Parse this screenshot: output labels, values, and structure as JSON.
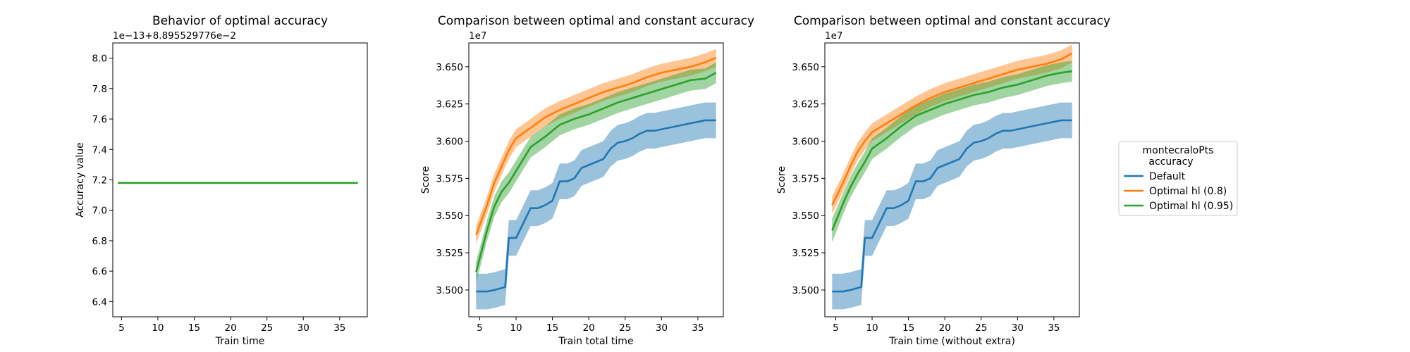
{
  "chart_data": [
    {
      "type": "line",
      "title": "Behavior of optimal accuracy",
      "xlabel": "Train time",
      "ylabel": "Accuracy value",
      "offset_text": "1e−13+8.895529776e−2",
      "xlim": [
        3.8,
        38.8
      ],
      "ylim": [
        6.3,
        8.1
      ],
      "xticks": [
        5,
        10,
        15,
        20,
        25,
        30,
        35
      ],
      "yticks": [
        6.4,
        6.6,
        6.8,
        7.0,
        7.2,
        7.4,
        7.6,
        7.8,
        8.0
      ],
      "ytick_labels": [
        "6.4",
        "6.6",
        "6.8",
        "7.0",
        "7.2",
        "7.4",
        "7.6",
        "7.8",
        "8.0"
      ],
      "series": [
        {
          "name": "Optimal hl (0.8)",
          "color": "#ff7f0e",
          "x": [
            4.5,
            37.5
          ],
          "y": [
            7.18,
            7.18
          ],
          "lower": [
            7.18,
            7.18
          ],
          "upper": [
            7.18,
            7.18
          ]
        },
        {
          "name": "Optimal hl (0.95)",
          "color": "#2ca02c",
          "x": [
            4.5,
            37.5
          ],
          "y": [
            7.18,
            7.18
          ],
          "lower": [
            7.18,
            7.18
          ],
          "upper": [
            7.18,
            7.18
          ]
        }
      ]
    },
    {
      "type": "line",
      "title": "Comparison between optimal and constant accuracy",
      "xlabel": "Train total time",
      "ylabel": "Score",
      "offset_text": "1e7",
      "xlim": [
        3.5,
        38.5
      ],
      "ylim": [
        3.482,
        3.666
      ],
      "xticks": [
        5,
        10,
        15,
        20,
        25,
        30,
        35
      ],
      "yticks": [
        3.5,
        3.525,
        3.55,
        3.575,
        3.6,
        3.625,
        3.65
      ],
      "ytick_labels": [
        "3.500",
        "3.525",
        "3.550",
        "3.575",
        "3.600",
        "3.625",
        "3.650"
      ],
      "series": [
        {
          "name": "Default",
          "color": "#1f77b4",
          "x": [
            4.5,
            6,
            7,
            8.5,
            9,
            10,
            11,
            12,
            13,
            14,
            15,
            16,
            17,
            18,
            19,
            20,
            21,
            22,
            23,
            24,
            25,
            26,
            27,
            28,
            29,
            30,
            31,
            32,
            33,
            34,
            35,
            36,
            37.5
          ],
          "y": [
            3.499,
            3.499,
            3.5,
            3.502,
            3.535,
            3.535,
            3.545,
            3.555,
            3.555,
            3.557,
            3.56,
            3.573,
            3.573,
            3.575,
            3.582,
            3.584,
            3.586,
            3.588,
            3.595,
            3.599,
            3.6,
            3.602,
            3.605,
            3.607,
            3.607,
            3.608,
            3.609,
            3.61,
            3.611,
            3.612,
            3.613,
            3.614,
            3.614
          ],
          "lower": [
            3.487,
            3.487,
            3.488,
            3.49,
            3.523,
            3.523,
            3.533,
            3.543,
            3.543,
            3.545,
            3.548,
            3.561,
            3.561,
            3.563,
            3.57,
            3.572,
            3.574,
            3.576,
            3.583,
            3.587,
            3.588,
            3.59,
            3.593,
            3.595,
            3.595,
            3.596,
            3.597,
            3.598,
            3.599,
            3.6,
            3.601,
            3.602,
            3.602
          ],
          "upper": [
            3.511,
            3.511,
            3.512,
            3.514,
            3.547,
            3.547,
            3.557,
            3.567,
            3.567,
            3.569,
            3.572,
            3.585,
            3.585,
            3.587,
            3.594,
            3.596,
            3.598,
            3.6,
            3.607,
            3.611,
            3.612,
            3.614,
            3.617,
            3.619,
            3.619,
            3.62,
            3.621,
            3.622,
            3.623,
            3.624,
            3.625,
            3.626,
            3.626
          ]
        },
        {
          "name": "Optimal hl (0.8)",
          "color": "#ff7f0e",
          "x": [
            4.5,
            6,
            7,
            8,
            9,
            10,
            12,
            14,
            16,
            18,
            20,
            22,
            24,
            26,
            28,
            30,
            32,
            34,
            36,
            37.5
          ],
          "y": [
            3.537,
            3.557,
            3.572,
            3.583,
            3.594,
            3.602,
            3.609,
            3.616,
            3.621,
            3.625,
            3.629,
            3.633,
            3.636,
            3.639,
            3.643,
            3.646,
            3.648,
            3.65,
            3.653,
            3.656
          ],
          "lower": [
            3.531,
            3.551,
            3.566,
            3.577,
            3.588,
            3.596,
            3.603,
            3.61,
            3.615,
            3.619,
            3.623,
            3.627,
            3.63,
            3.633,
            3.637,
            3.64,
            3.642,
            3.644,
            3.647,
            3.65
          ],
          "upper": [
            3.543,
            3.563,
            3.578,
            3.589,
            3.6,
            3.608,
            3.615,
            3.622,
            3.627,
            3.631,
            3.635,
            3.639,
            3.642,
            3.645,
            3.649,
            3.652,
            3.654,
            3.656,
            3.659,
            3.662
          ]
        },
        {
          "name": "Optimal hl (0.95)",
          "color": "#2ca02c",
          "x": [
            4.5,
            6,
            7,
            8,
            9,
            10,
            12,
            14,
            16,
            18,
            20,
            22,
            24,
            26,
            28,
            30,
            32,
            34,
            36,
            37.5
          ],
          "y": [
            3.512,
            3.54,
            3.556,
            3.566,
            3.572,
            3.58,
            3.596,
            3.603,
            3.611,
            3.615,
            3.618,
            3.622,
            3.626,
            3.629,
            3.632,
            3.635,
            3.638,
            3.641,
            3.642,
            3.646
          ],
          "lower": [
            3.505,
            3.533,
            3.549,
            3.559,
            3.565,
            3.573,
            3.589,
            3.596,
            3.604,
            3.608,
            3.611,
            3.615,
            3.619,
            3.622,
            3.625,
            3.628,
            3.631,
            3.634,
            3.635,
            3.639
          ],
          "upper": [
            3.519,
            3.547,
            3.563,
            3.573,
            3.579,
            3.587,
            3.603,
            3.61,
            3.618,
            3.622,
            3.625,
            3.629,
            3.633,
            3.636,
            3.639,
            3.642,
            3.645,
            3.648,
            3.649,
            3.653
          ]
        }
      ]
    },
    {
      "type": "line",
      "title": "Comparison between optimal and constant accuracy",
      "xlabel": "Train time (without extra)",
      "ylabel": "Score",
      "offset_text": "1e7",
      "xlim": [
        3.5,
        38.5
      ],
      "ylim": [
        3.482,
        3.666
      ],
      "xticks": [
        5,
        10,
        15,
        20,
        25,
        30,
        35
      ],
      "yticks": [
        3.5,
        3.525,
        3.55,
        3.575,
        3.6,
        3.625,
        3.65
      ],
      "ytick_labels": [
        "3.500",
        "3.525",
        "3.550",
        "3.575",
        "3.600",
        "3.625",
        "3.650"
      ],
      "series": [
        {
          "name": "Default",
          "color": "#1f77b4",
          "x": [
            4.5,
            6,
            7,
            8.5,
            9,
            10,
            11,
            12,
            13,
            14,
            15,
            16,
            17,
            18,
            19,
            20,
            21,
            22,
            23,
            24,
            25,
            26,
            27,
            28,
            29,
            30,
            31,
            32,
            33,
            34,
            35,
            36,
            37.5
          ],
          "y": [
            3.499,
            3.499,
            3.5,
            3.502,
            3.535,
            3.535,
            3.545,
            3.555,
            3.555,
            3.557,
            3.56,
            3.573,
            3.573,
            3.575,
            3.582,
            3.584,
            3.586,
            3.588,
            3.595,
            3.599,
            3.6,
            3.602,
            3.605,
            3.607,
            3.607,
            3.608,
            3.609,
            3.61,
            3.611,
            3.612,
            3.613,
            3.614,
            3.614
          ],
          "lower": [
            3.487,
            3.487,
            3.488,
            3.49,
            3.523,
            3.523,
            3.533,
            3.543,
            3.543,
            3.545,
            3.548,
            3.561,
            3.561,
            3.563,
            3.57,
            3.572,
            3.574,
            3.576,
            3.583,
            3.587,
            3.588,
            3.59,
            3.593,
            3.595,
            3.595,
            3.596,
            3.597,
            3.598,
            3.599,
            3.6,
            3.601,
            3.602,
            3.602
          ],
          "upper": [
            3.511,
            3.511,
            3.512,
            3.514,
            3.547,
            3.547,
            3.557,
            3.567,
            3.567,
            3.569,
            3.572,
            3.585,
            3.585,
            3.587,
            3.594,
            3.596,
            3.598,
            3.6,
            3.607,
            3.611,
            3.612,
            3.614,
            3.617,
            3.619,
            3.619,
            3.62,
            3.621,
            3.622,
            3.623,
            3.624,
            3.625,
            3.626,
            3.626
          ]
        },
        {
          "name": "Optimal hl (0.8)",
          "color": "#ff7f0e",
          "x": [
            4.5,
            6,
            7,
            8,
            9,
            10,
            12,
            14,
            16,
            18,
            20,
            22,
            24,
            26,
            28,
            30,
            32,
            34,
            36,
            37.5
          ],
          "y": [
            3.557,
            3.572,
            3.583,
            3.593,
            3.6,
            3.606,
            3.612,
            3.618,
            3.624,
            3.629,
            3.633,
            3.636,
            3.639,
            3.642,
            3.645,
            3.648,
            3.65,
            3.652,
            3.655,
            3.659
          ],
          "lower": [
            3.551,
            3.566,
            3.577,
            3.587,
            3.594,
            3.6,
            3.606,
            3.612,
            3.618,
            3.623,
            3.627,
            3.63,
            3.633,
            3.636,
            3.639,
            3.642,
            3.644,
            3.646,
            3.649,
            3.653
          ],
          "upper": [
            3.563,
            3.578,
            3.589,
            3.599,
            3.606,
            3.612,
            3.618,
            3.624,
            3.63,
            3.635,
            3.639,
            3.642,
            3.645,
            3.648,
            3.651,
            3.654,
            3.656,
            3.658,
            3.661,
            3.665
          ]
        },
        {
          "name": "Optimal hl (0.95)",
          "color": "#2ca02c",
          "x": [
            4.5,
            6,
            7,
            8,
            9,
            10,
            12,
            14,
            16,
            18,
            20,
            22,
            24,
            26,
            28,
            30,
            32,
            34,
            36,
            37.5
          ],
          "y": [
            3.54,
            3.558,
            3.569,
            3.578,
            3.586,
            3.595,
            3.602,
            3.61,
            3.617,
            3.621,
            3.625,
            3.628,
            3.631,
            3.633,
            3.636,
            3.638,
            3.641,
            3.644,
            3.646,
            3.647
          ],
          "lower": [
            3.532,
            3.551,
            3.562,
            3.571,
            3.579,
            3.588,
            3.595,
            3.603,
            3.61,
            3.614,
            3.618,
            3.621,
            3.624,
            3.626,
            3.629,
            3.631,
            3.634,
            3.637,
            3.639,
            3.64
          ],
          "upper": [
            3.548,
            3.565,
            3.576,
            3.585,
            3.593,
            3.602,
            3.609,
            3.617,
            3.624,
            3.628,
            3.632,
            3.635,
            3.638,
            3.64,
            3.643,
            3.645,
            3.648,
            3.651,
            3.653,
            3.654
          ]
        }
      ]
    }
  ],
  "legend": {
    "title_line1": "montecraloPts",
    "title_line2": "accuracy",
    "placement": "right",
    "entries": [
      {
        "label": "Default",
        "color": "#1f77b4"
      },
      {
        "label": "Optimal hl (0.8)",
        "color": "#ff7f0e"
      },
      {
        "label": "Optimal hl (0.95)",
        "color": "#2ca02c"
      }
    ]
  }
}
